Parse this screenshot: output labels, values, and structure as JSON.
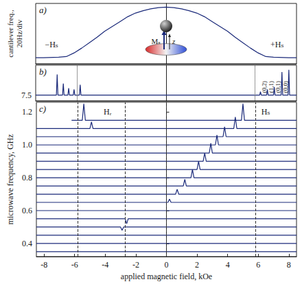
{
  "chart_data": [
    {
      "type": "line",
      "title": "a)",
      "y_label": "cantilever freq., 20Hz/div",
      "xlim": [
        -8.5,
        8.5
      ],
      "ylim": [
        0,
        5
      ],
      "tick_labels": false,
      "color": "#1b2a7a",
      "x": [
        -8.5,
        -8,
        -7,
        -6.5,
        -6,
        -5.5,
        -5,
        -4.5,
        -4,
        -3.5,
        -3,
        -2.5,
        -2,
        -1.5,
        -1,
        -0.5,
        0,
        0.5,
        1,
        1.5,
        2,
        2.5,
        3,
        3.5,
        4,
        4.5,
        5,
        5.5,
        6,
        6.5,
        7,
        8,
        8.5
      ],
      "values": [
        0.5,
        0.5,
        0.55,
        0.6,
        0.9,
        1.3,
        1.75,
        2.2,
        2.7,
        3.1,
        3.5,
        3.9,
        4.2,
        4.4,
        4.55,
        4.65,
        4.7,
        4.65,
        4.55,
        4.4,
        4.2,
        3.9,
        3.5,
        3.1,
        2.7,
        2.2,
        1.75,
        1.3,
        0.9,
        0.6,
        0.55,
        0.5,
        0.5
      ],
      "annotations": [
        {
          "text": "−Hₛ",
          "x": -7.9,
          "y": 1.6
        },
        {
          "text": "+Hₛ",
          "x": 6.8,
          "y": 1.6
        }
      ],
      "inset_labels": [
        "Mₛ",
        "z"
      ]
    },
    {
      "type": "line",
      "title": "b)",
      "xlim": [
        -8.5,
        8.5
      ],
      "ylim": [
        7.45,
        7.76
      ],
      "yticks": [
        7.5
      ],
      "tick_labels": "y",
      "color": "#1b2a7a",
      "x": [
        -8.5,
        -7.15,
        -7.1,
        -7.05,
        -6.75,
        -6.7,
        -6.65,
        -6.4,
        -6.35,
        -6.3,
        -6.05,
        -6.0,
        -5.95,
        -5.65,
        -5.6,
        -5.55,
        6.1,
        6.15,
        6.2,
        6.55,
        6.6,
        6.65,
        7.0,
        7.05,
        7.1,
        7.5,
        7.55,
        7.6,
        7.95,
        8.0,
        8.05,
        8.5
      ],
      "values": [
        7.5,
        7.5,
        7.68,
        7.5,
        7.5,
        7.6,
        7.5,
        7.5,
        7.56,
        7.5,
        7.5,
        7.55,
        7.5,
        7.5,
        7.59,
        7.5,
        7.5,
        7.53,
        7.5,
        7.5,
        7.55,
        7.5,
        7.5,
        7.57,
        7.5,
        7.5,
        7.7,
        7.5,
        7.5,
        7.72,
        7.5,
        7.5
      ],
      "vlines": [
        -5.8,
        5.8
      ],
      "annotations": [
        {
          "text": "(0,2)",
          "x": 6.38,
          "y": 7.52
        },
        {
          "text": "(1,1)",
          "x": 6.83,
          "y": 7.52
        },
        {
          "text": "(0,1)",
          "x": 7.3,
          "y": 7.52
        },
        {
          "text": "(0,0)",
          "x": 7.78,
          "y": 7.52
        }
      ]
    },
    {
      "type": "line",
      "title": "c)",
      "x_label": "applied magnetic field, kOe",
      "y_label": "microwave frequency, GHz",
      "xlim": [
        -8.5,
        8.5
      ],
      "ylim": [
        0.32,
        1.26
      ],
      "xticks": [
        -8,
        -6,
        -4,
        -2,
        0,
        2,
        4,
        6,
        8
      ],
      "yticks": [
        0.4,
        0.6,
        0.8,
        {
          "value": 1,
          "label": "1.0"
        },
        1.2
      ],
      "color": "#1b2a7a",
      "series": [
        {
          "x": [
            -6.2,
            -5.5,
            -5.4,
            -5.3,
            4.9,
            5.0,
            5.1,
            8.5
          ],
          "values": [
            1.15,
            1.15,
            1.25,
            1.15,
            1.15,
            1.25,
            1.15,
            1.15
          ]
        },
        {
          "x": [
            -8.5,
            -5.0,
            -4.9,
            -4.8,
            4.4,
            4.5,
            4.6,
            8.5
          ],
          "values": [
            1.1,
            1.1,
            1.14,
            1.1,
            1.1,
            1.17,
            1.1,
            1.1
          ]
        },
        {
          "x": [
            -8.5,
            3.7,
            3.8,
            3.9,
            8.5
          ],
          "values": [
            1.05,
            1.05,
            1.11,
            1.05,
            1.05
          ]
        },
        {
          "x": [
            -8.5,
            3.2,
            3.3,
            3.4,
            8.5
          ],
          "values": [
            1.0,
            1.0,
            1.06,
            1.0,
            1.0
          ]
        },
        {
          "x": [
            -8.5,
            2.8,
            2.9,
            3.0,
            8.5
          ],
          "values": [
            0.95,
            0.95,
            1.01,
            0.95,
            0.95
          ]
        },
        {
          "x": [
            -8.5,
            2.4,
            2.5,
            2.6,
            8.5
          ],
          "values": [
            0.9,
            0.9,
            0.95,
            0.9,
            0.9
          ]
        },
        {
          "x": [
            -8.5,
            2.0,
            2.1,
            2.2,
            8.5
          ],
          "values": [
            0.85,
            0.85,
            0.9,
            0.85,
            0.85
          ]
        },
        {
          "x": [
            -8.5,
            1.6,
            1.7,
            1.8,
            8.5
          ],
          "values": [
            0.8,
            0.8,
            0.85,
            0.8,
            0.8
          ]
        },
        {
          "x": [
            -8.5,
            1.1,
            1.2,
            1.3,
            8.5
          ],
          "values": [
            0.75,
            0.75,
            0.79,
            0.75,
            0.75
          ]
        },
        {
          "x": [
            -8.5,
            0.6,
            0.7,
            0.8,
            8.5
          ],
          "values": [
            0.7,
            0.7,
            0.73,
            0.7,
            0.7
          ]
        },
        {
          "x": [
            -8.5,
            0.1,
            0.2,
            0.3,
            8.5
          ],
          "values": [
            0.65,
            0.65,
            0.67,
            0.65,
            0.65
          ]
        },
        {
          "x": [
            -8.5,
            8.5
          ],
          "values": [
            0.6,
            0.6
          ]
        },
        {
          "x": [
            -8.5,
            -2.7,
            -2.6,
            -2.5,
            8.5
          ],
          "values": [
            0.55,
            0.55,
            0.52,
            0.55,
            0.55
          ]
        },
        {
          "x": [
            -8.5,
            -3.0,
            -2.9,
            -2.8,
            8.5
          ],
          "values": [
            0.5,
            0.5,
            0.48,
            0.5,
            0.5
          ]
        },
        {
          "x": [
            -8.5,
            8.5
          ],
          "values": [
            0.45,
            0.45
          ]
        },
        {
          "x": [
            -8.5,
            8.5
          ],
          "values": [
            0.4,
            0.4
          ]
        },
        {
          "x": [
            -8.5,
            8.5
          ],
          "values": [
            0.35,
            0.35
          ]
        }
      ],
      "vlines": [
        -5.8,
        -2.7,
        0,
        5.8
      ],
      "annotations": [
        {
          "text": "Hᵣ",
          "x": -4.1,
          "y": 1.2
        },
        {
          "text": "Hₛ",
          "x": 6.2,
          "y": 1.2
        }
      ]
    }
  ]
}
